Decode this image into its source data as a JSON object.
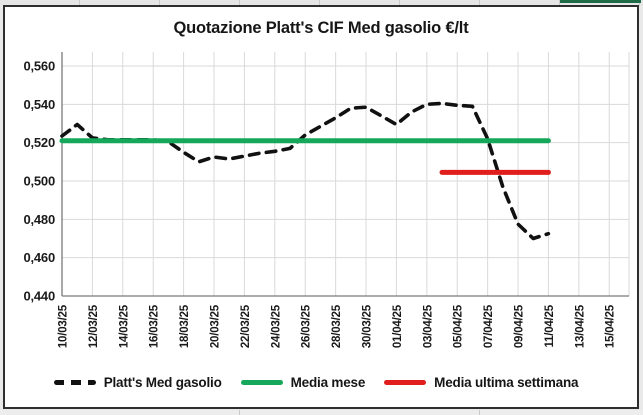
{
  "window": {
    "backdrop_accent_color": "#1f6b45"
  },
  "chart": {
    "title": "Quotazione Platt's CIF Med gasolio €/lt",
    "legend": [
      {
        "label": "Platt's Med gasolio",
        "style": "dashed",
        "color": "#111111"
      },
      {
        "label": "Media mese",
        "style": "solid",
        "color": "#15a85a"
      },
      {
        "label": "Media ultima settimana",
        "style": "solid",
        "color": "#e01e1e"
      }
    ]
  },
  "chart_data": {
    "type": "line",
    "title": "Quotazione Platt's CIF Med gasolio €/lt",
    "xlabel": "",
    "ylabel": "",
    "ylim": [
      0.44,
      0.56
    ],
    "y_ticks": [
      0.56,
      0.54,
      0.52,
      0.5,
      0.48,
      0.46,
      0.44
    ],
    "y_tick_labels": [
      "0,560",
      "0,540",
      "0,520",
      "0,500",
      "0,480",
      "0,460",
      "0,440"
    ],
    "x_tick_labels": [
      "10/03/25",
      "12/03/25",
      "14/03/25",
      "16/03/25",
      "18/03/25",
      "20/03/25",
      "22/03/25",
      "24/03/25",
      "26/03/25",
      "28/03/25",
      "30/03/25",
      "01/04/25",
      "03/04/25",
      "05/04/25",
      "07/04/25",
      "09/04/25",
      "11/04/25",
      "13/04/25",
      "15/04/25"
    ],
    "x_tick_day_offsets": [
      0,
      2,
      4,
      6,
      8,
      10,
      12,
      14,
      16,
      18,
      20,
      22,
      24,
      26,
      28,
      30,
      32,
      34,
      36
    ],
    "x_axis_total_days": 37.3,
    "grid": true,
    "legend_position": "bottom",
    "series": [
      {
        "name": "Platt's Med gasolio",
        "kind": "line",
        "style": "dashed",
        "color": "#111111",
        "dates": [
          "10/03/25",
          "11/03/25",
          "12/03/25",
          "13/03/25",
          "14/03/25",
          "15/03/25",
          "16/03/25",
          "17/03/25",
          "18/03/25",
          "19/03/25",
          "20/03/25",
          "21/03/25",
          "22/03/25",
          "23/03/25",
          "24/03/25",
          "25/03/25",
          "26/03/25",
          "27/03/25",
          "28/03/25",
          "29/03/25",
          "30/03/25",
          "31/03/25",
          "01/04/25",
          "02/04/25",
          "03/04/25",
          "04/04/25",
          "05/04/25",
          "06/04/25",
          "07/04/25",
          "08/04/25",
          "09/04/25",
          "10/04/25",
          "11/04/25"
        ],
        "values": [
          0.5235,
          0.5295,
          0.5225,
          0.5215,
          0.5215,
          0.5215,
          0.5215,
          0.5205,
          0.515,
          0.51,
          0.5125,
          0.5115,
          0.513,
          0.5145,
          0.5155,
          0.517,
          0.524,
          0.5285,
          0.533,
          0.538,
          0.5385,
          0.534,
          0.5295,
          0.536,
          0.54,
          0.5405,
          0.5395,
          0.539,
          0.522,
          0.497,
          0.4775,
          0.47,
          0.4725
        ]
      },
      {
        "name": "Media mese",
        "kind": "hline",
        "style": "solid",
        "color": "#15a85a",
        "value": 0.521,
        "start_date": "10/03/25",
        "end_date": "11/04/25",
        "start_day": 0,
        "end_day": 32
      },
      {
        "name": "Media ultima settimana",
        "kind": "hline",
        "style": "solid",
        "color": "#e01e1e",
        "value": 0.5045,
        "start_date": "04/04/25",
        "end_date": "11/04/25",
        "start_day": 25,
        "end_day": 32
      }
    ]
  }
}
